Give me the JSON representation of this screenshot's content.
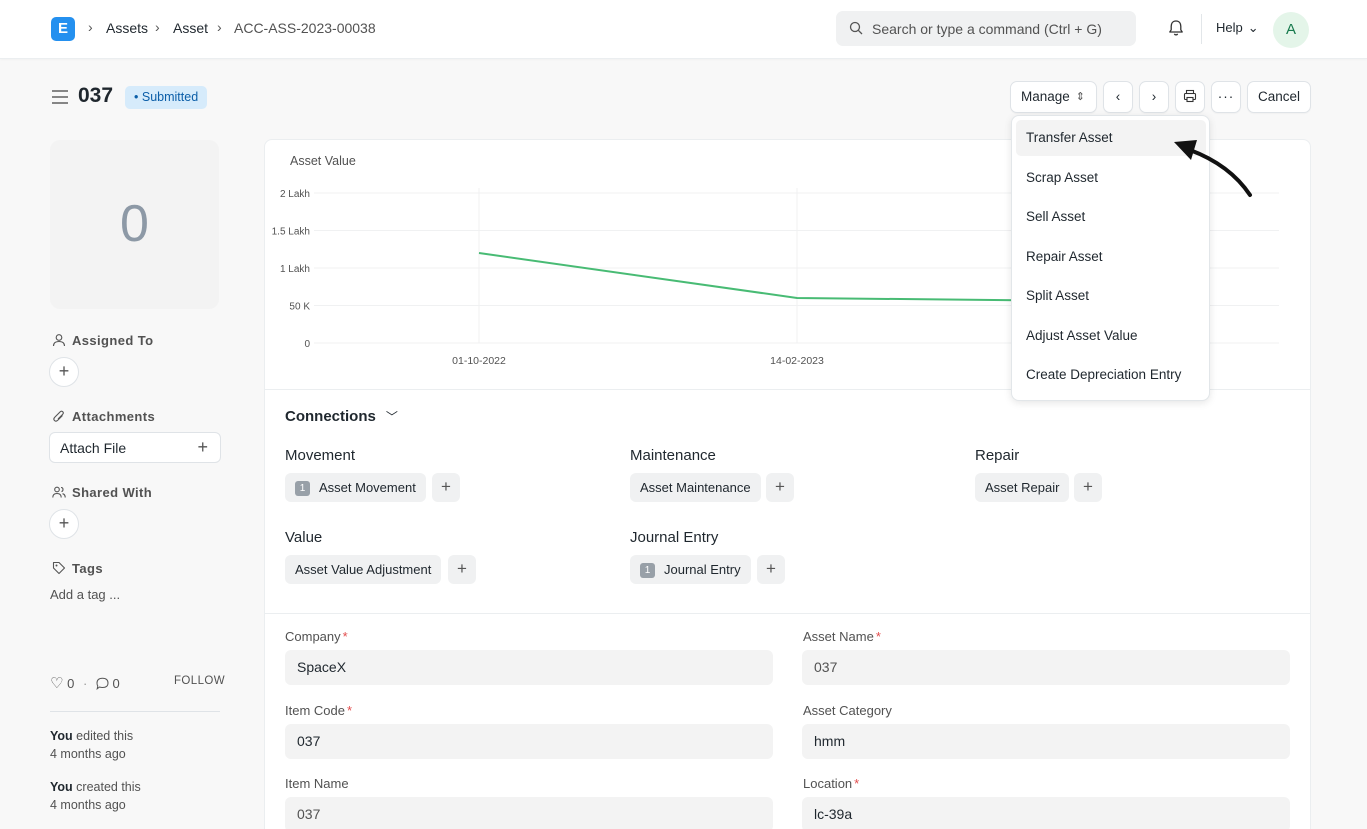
{
  "navbar": {
    "breadcrumbs": [
      "Assets",
      "Asset",
      "ACC-ASS-2023-00038"
    ],
    "search_placeholder": "Search or type a command (Ctrl + G)",
    "help_label": "Help",
    "avatar_initial": "A"
  },
  "page": {
    "title": "037",
    "status": "Submitted",
    "status_color": "#0b5ea8",
    "manage_label": "Manage",
    "cancel_label": "Cancel"
  },
  "sidebar": {
    "image_placeholder": "0",
    "assigned_to_label": "Assigned To",
    "attachments_label": "Attachments",
    "attach_file_label": "Attach File",
    "shared_with_label": "Shared With",
    "tags_label": "Tags",
    "add_tag_label": "Add a tag ...",
    "likes_count": "0",
    "comments_count": "0",
    "follow_label": "FOLLOW",
    "activity": [
      {
        "who": "You",
        "action": "edited this",
        "when": "4 months ago"
      },
      {
        "who": "You",
        "action": "created this",
        "when": "4 months ago"
      }
    ]
  },
  "chart_data": {
    "type": "line",
    "title": "Asset Value",
    "x": [
      "01-10-2022",
      "14-02-2023",
      ""
    ],
    "series": [
      {
        "values": [
          120000,
          60000,
          57000
        ]
      }
    ],
    "ytick_labels": [
      "2 Lakh",
      "1.5 Lakh",
      "1 Lakh",
      "50 K",
      "0"
    ],
    "ylim": [
      0,
      200000
    ],
    "line_color": "#48bb74",
    "grid": true
  },
  "connections": {
    "title": "Connections",
    "groups": [
      {
        "title": "Movement",
        "items": [
          {
            "label": "Asset Movement",
            "count": "1"
          }
        ]
      },
      {
        "title": "Maintenance",
        "items": [
          {
            "label": "Asset Maintenance",
            "count": ""
          }
        ]
      },
      {
        "title": "Repair",
        "items": [
          {
            "label": "Asset Repair",
            "count": ""
          }
        ]
      },
      {
        "title": "Value",
        "items": [
          {
            "label": "Asset Value Adjustment",
            "count": ""
          }
        ]
      },
      {
        "title": "Journal Entry",
        "items": [
          {
            "label": "Journal Entry",
            "count": "1"
          }
        ]
      }
    ]
  },
  "fields": {
    "company": {
      "label": "Company",
      "value": "SpaceX"
    },
    "asset_name": {
      "label": "Asset Name",
      "value": "037"
    },
    "item_code": {
      "label": "Item Code",
      "value": "037"
    },
    "asset_category": {
      "label": "Asset Category",
      "value": "hmm"
    },
    "item_name": {
      "label": "Item Name",
      "value": "037"
    },
    "location": {
      "label": "Location",
      "value": "lc-39a"
    }
  },
  "manage_menu": {
    "items": [
      "Transfer Asset",
      "Scrap Asset",
      "Sell Asset",
      "Repair Asset",
      "Split Asset",
      "Adjust Asset Value",
      "Create Depreciation Entry"
    ],
    "highlighted": "Transfer Asset"
  }
}
